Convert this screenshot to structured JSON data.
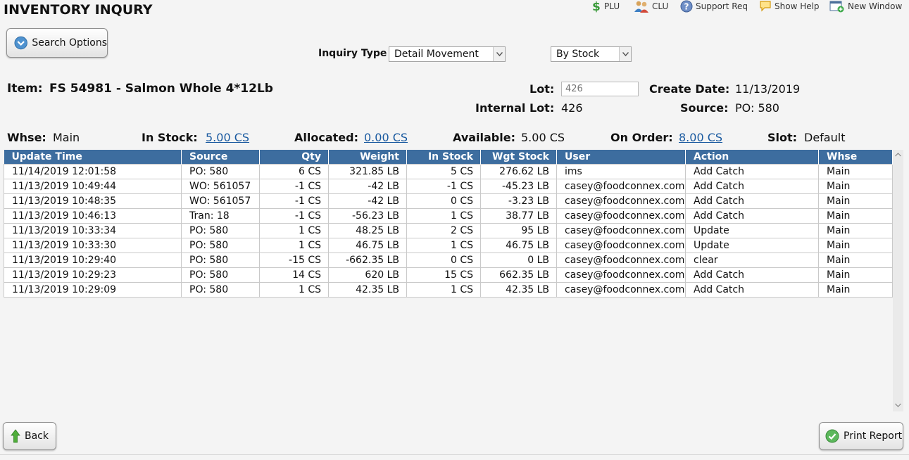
{
  "page": {
    "title": "INVENTORY INQURY"
  },
  "toolbar": {
    "plu": "PLU",
    "clu": "CLU",
    "support": "Support Req",
    "help": "Show Help",
    "new_window": "New Window"
  },
  "search_options": {
    "label": "Search Options"
  },
  "inquiry": {
    "label": "Inquiry Type",
    "type_value": "Detail Movement",
    "by_value": "By Stock"
  },
  "item": {
    "label": "Item:",
    "value": "FS 54981 - Salmon Whole 4*12Lb",
    "lot_label": "Lot:",
    "lot_placeholder": "426",
    "create_date_label": "Create Date:",
    "create_date": "11/13/2019",
    "internal_lot_label": "Internal Lot:",
    "internal_lot": "426",
    "source_label": "Source:",
    "source": "PO: 580"
  },
  "summary": {
    "whse_label": "Whse:",
    "whse": "Main",
    "instock_label": "In Stock:",
    "instock": "5.00 CS",
    "allocated_label": "Allocated:",
    "allocated": "0.00 CS",
    "available_label": "Available:",
    "available": "5.00 CS",
    "onorder_label": "On Order:",
    "onorder": "8.00 CS",
    "slot_label": "Slot:",
    "slot": "Default"
  },
  "table": {
    "headers": [
      "Update Time",
      "Source",
      "Qty",
      "Weight",
      "In Stock",
      "Wgt Stock",
      "User",
      "Action",
      "Whse"
    ],
    "rows": [
      [
        "11/14/2019 12:01:58",
        "PO: 580",
        "6 CS",
        "321.85 LB",
        "5 CS",
        "276.62 LB",
        "ims",
        "Add Catch",
        "Main"
      ],
      [
        "11/13/2019 10:49:44",
        "WO: 561057",
        "-1 CS",
        "-42 LB",
        "-1 CS",
        "-45.23 LB",
        "casey@foodconnex.com",
        "Add Catch",
        "Main"
      ],
      [
        "11/13/2019 10:48:35",
        "WO: 561057",
        "-1 CS",
        "-42 LB",
        "0 CS",
        "-3.23 LB",
        "casey@foodconnex.com",
        "Add Catch",
        "Main"
      ],
      [
        "11/13/2019 10:46:13",
        "Tran: 18",
        "-1 CS",
        "-56.23 LB",
        "1 CS",
        "38.77 LB",
        "casey@foodconnex.com",
        "Add Catch",
        "Main"
      ],
      [
        "11/13/2019 10:33:34",
        "PO: 580",
        "1 CS",
        "48.25 LB",
        "2 CS",
        "95 LB",
        "casey@foodconnex.com",
        "Update",
        "Main"
      ],
      [
        "11/13/2019 10:33:30",
        "PO: 580",
        "1 CS",
        "46.75 LB",
        "1 CS",
        "46.75 LB",
        "casey@foodconnex.com",
        "Update",
        "Main"
      ],
      [
        "11/13/2019 10:29:40",
        "PO: 580",
        "-15 CS",
        "-662.35 LB",
        "0 CS",
        "0 LB",
        "casey@foodconnex.com",
        "clear",
        "Main"
      ],
      [
        "11/13/2019 10:29:23",
        "PO: 580",
        "14 CS",
        "620 LB",
        "15 CS",
        "662.35 LB",
        "casey@foodconnex.com",
        "Add Catch",
        "Main"
      ],
      [
        "11/13/2019 10:29:09",
        "PO: 580",
        "1 CS",
        "42.35 LB",
        "1 CS",
        "42.35 LB",
        "casey@foodconnex.com",
        "Add Catch",
        "Main"
      ]
    ]
  },
  "footer": {
    "back": "Back",
    "print": "Print Report"
  }
}
